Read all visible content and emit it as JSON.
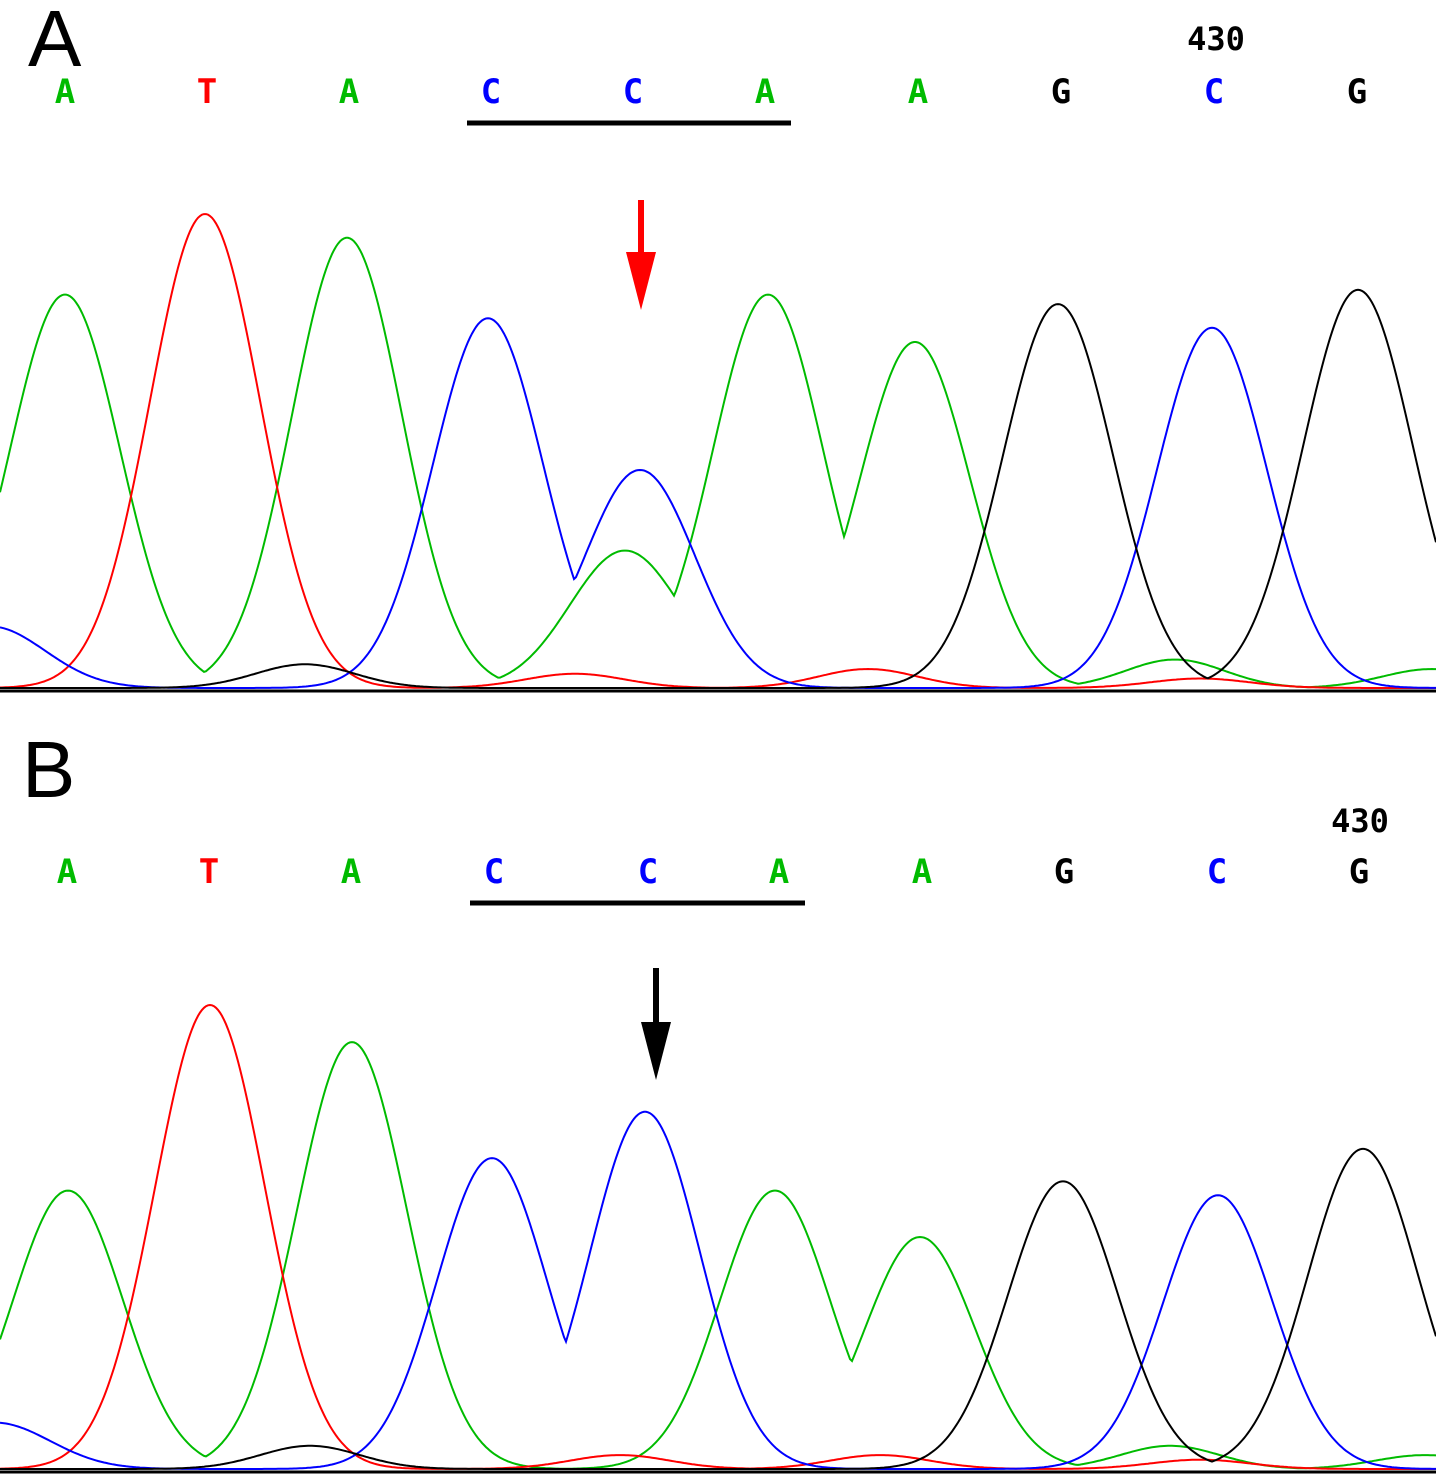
{
  "colors": {
    "A": "#00bb00",
    "T": "#ff0000",
    "C": "#0000ff",
    "G": "#000000"
  },
  "chart_data": [
    {
      "type": "line",
      "panel_label": "A",
      "position_label": "430",
      "bases": [
        "A",
        "T",
        "A",
        "C",
        "C",
        "A",
        "A",
        "G",
        "C",
        "G"
      ],
      "underlined_bases": [
        3,
        5
      ],
      "arrow": {
        "base_index": 4,
        "color": "#ff0000"
      },
      "ylim": [
        0,
        100
      ],
      "series": [
        {
          "base": "A",
          "peaks": [
            [
              65,
              83
            ],
            [
              347,
              95
            ],
            [
              625,
              29
            ],
            [
              768,
              83
            ],
            [
              915,
              73
            ],
            [
              1175,
              6
            ],
            [
              1432,
              4
            ]
          ]
        },
        {
          "base": "T",
          "peaks": [
            [
              205,
              100
            ],
            [
              575,
              3
            ],
            [
              868,
              4
            ],
            [
              1200,
              2
            ]
          ]
        },
        {
          "base": "C",
          "peaks": [
            [
              -10,
              13
            ],
            [
              488,
              78
            ],
            [
              640,
              46
            ],
            [
              1212,
              76
            ]
          ]
        },
        {
          "base": "G",
          "peaks": [
            [
              305,
              5
            ],
            [
              1058,
              81
            ],
            [
              1358,
              84
            ]
          ]
        }
      ]
    },
    {
      "type": "line",
      "panel_label": "B",
      "position_label": "430",
      "bases": [
        "A",
        "T",
        "A",
        "C",
        "C",
        "A",
        "A",
        "G",
        "C",
        "G"
      ],
      "underlined_bases": [
        3,
        5
      ],
      "arrow": {
        "base_index": 4,
        "color": "#000000"
      },
      "ylim": [
        0,
        100
      ],
      "series": [
        {
          "base": "A",
          "peaks": [
            [
              68,
              60
            ],
            [
              352,
              92
            ],
            [
              775,
              60
            ],
            [
              920,
              50
            ],
            [
              1170,
              5
            ],
            [
              1425,
              3
            ]
          ]
        },
        {
          "base": "T",
          "peaks": [
            [
              210,
              100
            ],
            [
              620,
              3
            ],
            [
              880,
              3
            ],
            [
              1200,
              2
            ]
          ]
        },
        {
          "base": "C",
          "peaks": [
            [
              -5,
              10
            ],
            [
              492,
              67
            ],
            [
              645,
              77
            ],
            [
              1218,
              59
            ]
          ]
        },
        {
          "base": "G",
          "peaks": [
            [
              310,
              5
            ],
            [
              1063,
              62
            ],
            [
              1363,
              69
            ]
          ]
        }
      ]
    }
  ]
}
